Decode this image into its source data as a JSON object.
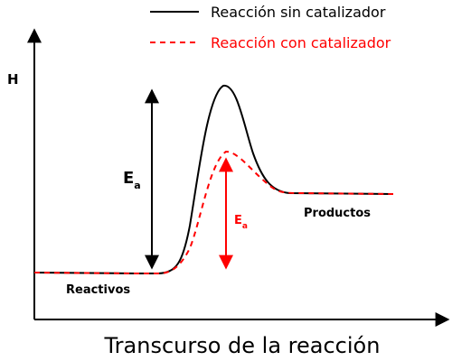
{
  "chart_data": {
    "type": "line",
    "xlabel": "Transcurso de la reacción",
    "ylabel": "H",
    "grid": false,
    "legend_position": "top-right",
    "series": [
      {
        "name": "Reacción sin catalizador",
        "color": "#000000",
        "dash": "solid"
      },
      {
        "name": "Reacción con catalizador",
        "color": "#ff0000",
        "dash": "dashed"
      }
    ],
    "annotations": {
      "reactants": "Reactivos",
      "products": "Productos",
      "ea_uncatalyzed": {
        "main": "E",
        "sub": "a",
        "color": "#000000"
      },
      "ea_catalyzed": {
        "main": "E",
        "sub": "a",
        "color": "#ff0000"
      }
    }
  }
}
